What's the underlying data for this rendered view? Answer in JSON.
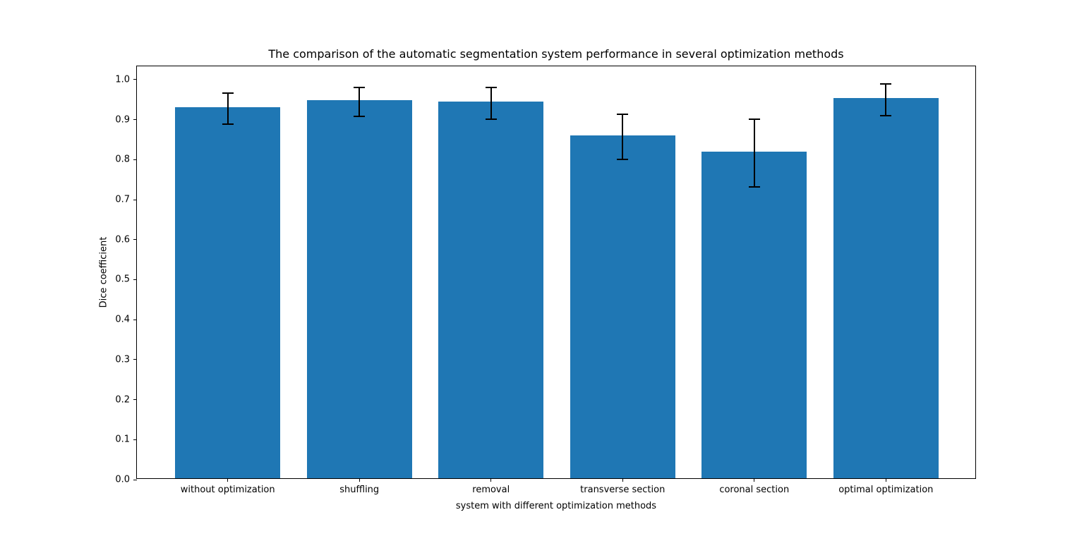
{
  "chart_data": {
    "type": "bar",
    "title": "The comparison of the automatic segmentation system performance in several optimization methods",
    "xlabel": "system with different optimization methods",
    "ylabel": "Dice coefficient",
    "categories": [
      "without optimization",
      "shuffling",
      "removal",
      "transverse section",
      "coronal section",
      "optimal optimization"
    ],
    "values": [
      0.928,
      0.945,
      0.941,
      0.857,
      0.817,
      0.95
    ],
    "errors": [
      0.039,
      0.036,
      0.039,
      0.057,
      0.085,
      0.04
    ],
    "bar_color": "#1f77b4",
    "error_color": "#000000",
    "ylim": [
      0,
      1.0335
    ],
    "yticks": [
      0.0,
      0.1,
      0.2,
      0.3,
      0.4,
      0.5,
      0.6,
      0.7,
      0.8,
      0.9,
      1.0
    ],
    "xlim": [
      -0.69,
      5.69
    ],
    "bar_width": 0.8,
    "grid": false,
    "legend": null
  }
}
